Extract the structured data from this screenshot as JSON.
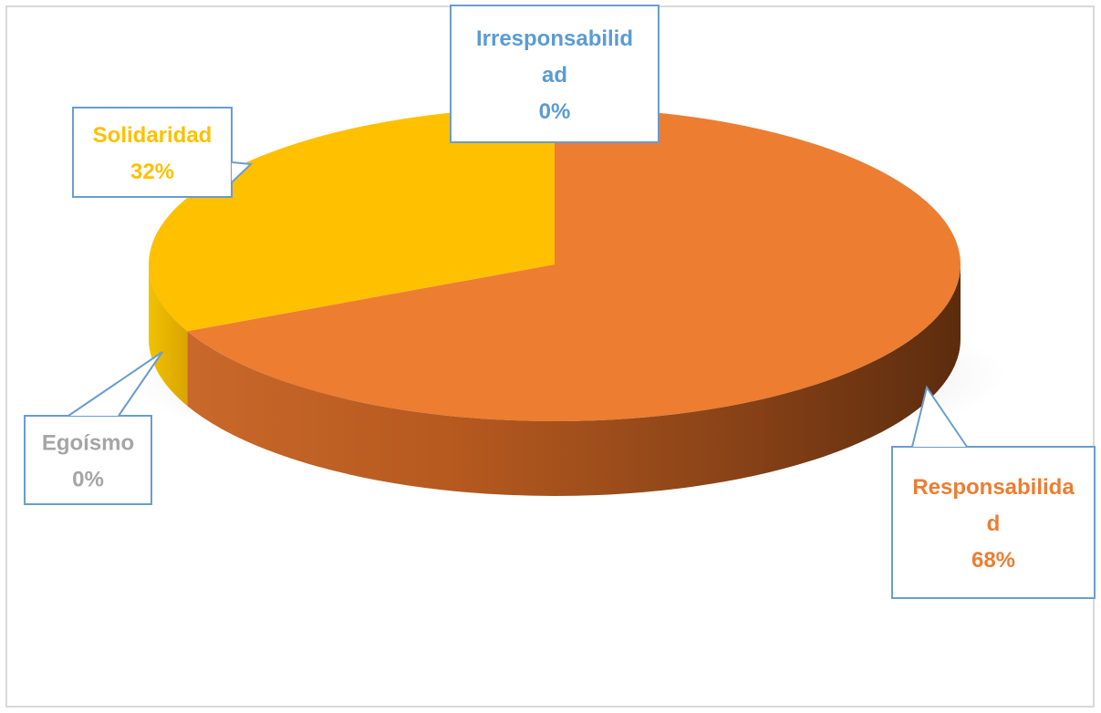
{
  "chart_data": {
    "type": "pie",
    "title": "",
    "slices": [
      {
        "label_lines": [
          "Responsabilida",
          "d"
        ],
        "percent_label": "68%",
        "value": 68,
        "color": "#ed7d31"
      },
      {
        "label_lines": [
          "Egoísmo"
        ],
        "percent_label": "0%",
        "value": 0,
        "color": "#a5a5a5"
      },
      {
        "label_lines": [
          "Solidaridad"
        ],
        "percent_label": "32%",
        "value": 32,
        "color": "#ffc000"
      },
      {
        "label_lines": [
          "Irresponsabilid",
          "ad"
        ],
        "percent_label": "0%",
        "value": 0,
        "color": "#5b9bd5"
      }
    ],
    "legend": "none",
    "style": "3d-pie-with-callouts"
  }
}
